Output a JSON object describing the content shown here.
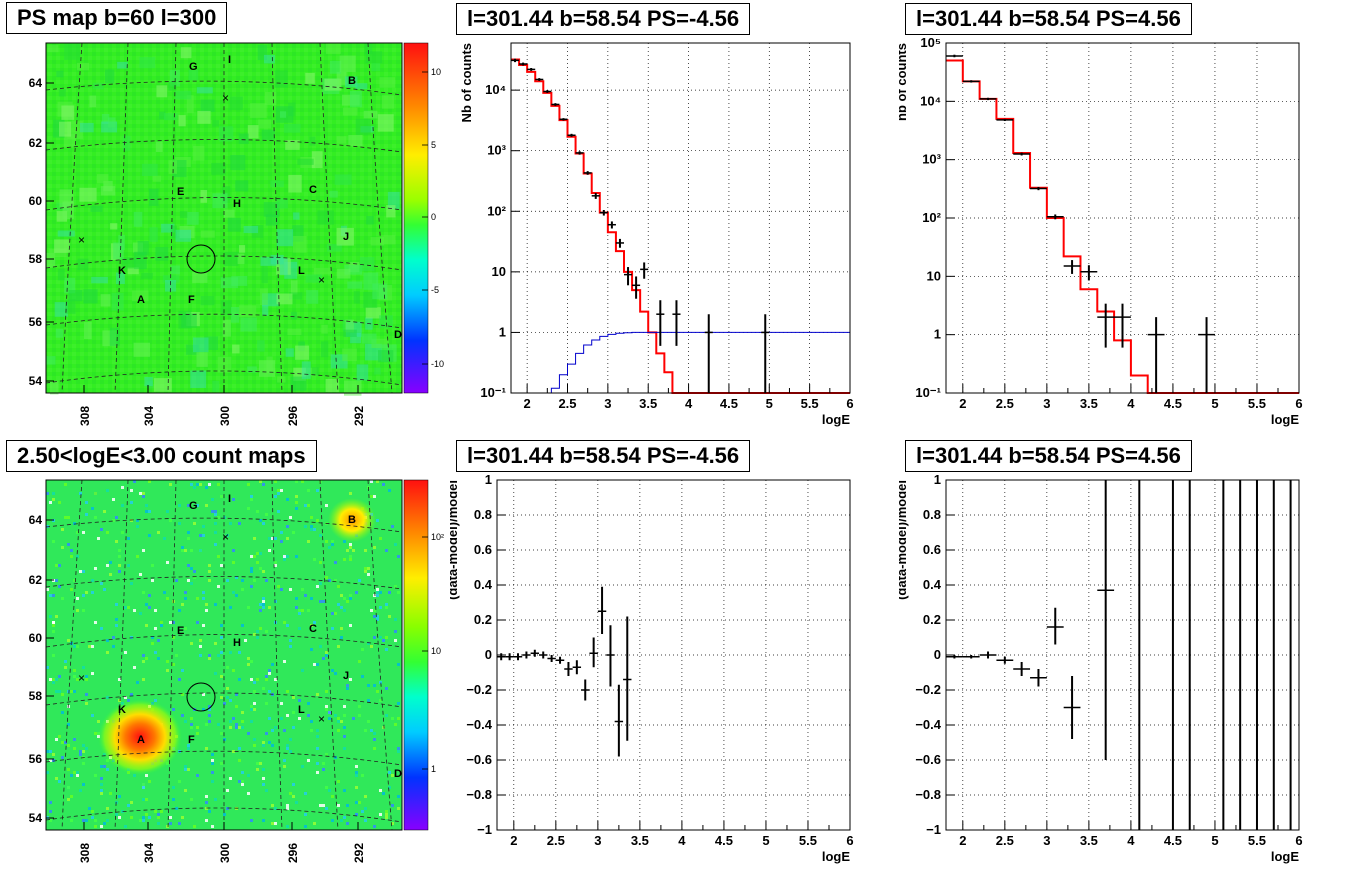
{
  "panels": {
    "map_top": {
      "title": "PS map b=60 l=300"
    },
    "map_bottom": {
      "title": "2.50<logE<3.00 count maps"
    },
    "spec_left": {
      "title": "l=301.44 b=58.54 PS=-4.56"
    },
    "spec_right": {
      "title": "l=301.44 b=58.54 PS=4.56"
    },
    "res_left": {
      "title": "l=301.44 b=58.54 PS=-4.56"
    },
    "res_right": {
      "title": "l=301.44 b=58.54 PS=4.56"
    }
  },
  "maps": {
    "x_ticks": [
      "308",
      "304",
      "300",
      "296",
      "292"
    ],
    "y_ticks": [
      "64",
      "62",
      "60",
      "58",
      "56",
      "54"
    ],
    "source_labels": [
      "G",
      "I",
      "B",
      "E",
      "H",
      "C",
      "J",
      "K",
      "L",
      "A",
      "F",
      "D"
    ],
    "top_colorbar_ticks": [
      "10",
      "5",
      "0",
      "-5",
      "-10"
    ],
    "bottom_colorbar_ticks": [
      "10²",
      "10",
      "1"
    ]
  },
  "chart_data": [
    {
      "type": "line",
      "panel": "spec_left",
      "title": "l=301.44 b=58.54 PS=-4.56",
      "xlabel": "logE",
      "ylabel": "Nb of counts",
      "log_y": true,
      "xlim": [
        1.8,
        6
      ],
      "ylim": [
        0.1,
        60000
      ],
      "x_ticks": [
        "2",
        "2.5",
        "3",
        "3.5",
        "4",
        "4.5",
        "5",
        "5.5",
        "6"
      ],
      "y_ticks": [
        "10⁻¹",
        "1",
        "10",
        "10²",
        "10³",
        "10⁴"
      ],
      "grid": true,
      "series": [
        {
          "kind": "step",
          "color": "#ff0000",
          "edges": [
            1.8,
            1.9,
            2.0,
            2.1,
            2.2,
            2.3,
            2.4,
            2.5,
            2.6,
            2.7,
            2.8,
            2.9,
            3.0,
            3.1,
            3.2,
            3.3,
            3.4,
            3.5,
            3.6,
            3.7,
            3.8,
            3.9,
            4.0,
            6.0
          ],
          "values": [
            32000,
            26000,
            20000,
            14000,
            9000,
            5500,
            3200,
            1700,
            900,
            420,
            200,
            95,
            45,
            22,
            10,
            5,
            2.2,
            1.0,
            0.45,
            0.22,
            0.1,
            0.1,
            0.1
          ]
        },
        {
          "kind": "step",
          "color": "#0000cc",
          "edges": [
            1.8,
            2.3,
            2.4,
            2.5,
            2.6,
            2.7,
            2.8,
            2.9,
            3.0,
            3.1,
            3.2,
            3.3,
            3.4,
            6.0
          ],
          "values": [
            0.1,
            0.12,
            0.2,
            0.3,
            0.45,
            0.62,
            0.75,
            0.86,
            0.93,
            0.97,
            0.99,
            1.0,
            1.0
          ]
        },
        {
          "kind": "points",
          "color": "#000000",
          "points": [
            {
              "x": 1.85,
              "y": 31000,
              "lo": 29000,
              "hi": 33000,
              "xe": 0.05
            },
            {
              "x": 1.95,
              "y": 27000,
              "lo": 25500,
              "hi": 28500,
              "xe": 0.05
            },
            {
              "x": 2.05,
              "y": 22000,
              "lo": 20800,
              "hi": 23200,
              "xe": 0.05
            },
            {
              "x": 2.15,
              "y": 15000,
              "lo": 14200,
              "hi": 15800,
              "xe": 0.05
            },
            {
              "x": 2.25,
              "y": 9500,
              "lo": 9000,
              "hi": 10000,
              "xe": 0.05
            },
            {
              "x": 2.35,
              "y": 5800,
              "lo": 5500,
              "hi": 6100,
              "xe": 0.05
            },
            {
              "x": 2.45,
              "y": 3300,
              "lo": 3150,
              "hi": 3450,
              "xe": 0.05
            },
            {
              "x": 2.55,
              "y": 1800,
              "lo": 1700,
              "hi": 1900,
              "xe": 0.05
            },
            {
              "x": 2.65,
              "y": 920,
              "lo": 860,
              "hi": 980,
              "xe": 0.05
            },
            {
              "x": 2.75,
              "y": 430,
              "lo": 400,
              "hi": 460,
              "xe": 0.05
            },
            {
              "x": 2.85,
              "y": 180,
              "lo": 160,
              "hi": 200,
              "xe": 0.05
            },
            {
              "x": 2.95,
              "y": 95,
              "lo": 85,
              "hi": 105,
              "xe": 0.05
            },
            {
              "x": 3.05,
              "y": 60,
              "lo": 52,
              "hi": 68,
              "xe": 0.05
            },
            {
              "x": 3.15,
              "y": 30,
              "lo": 25,
              "hi": 35,
              "xe": 0.05
            },
            {
              "x": 3.25,
              "y": 9,
              "lo": 6,
              "hi": 12,
              "xe": 0.05
            },
            {
              "x": 3.35,
              "y": 6,
              "lo": 3.6,
              "hi": 8.4,
              "xe": 0.05
            },
            {
              "x": 3.45,
              "y": 11,
              "lo": 7.7,
              "hi": 14.3,
              "xe": 0.05
            },
            {
              "x": 3.65,
              "y": 2,
              "lo": 0.6,
              "hi": 3.4,
              "xe": 0.05
            },
            {
              "x": 3.85,
              "y": 2,
              "lo": 0.6,
              "hi": 3.4,
              "xe": 0.05
            },
            {
              "x": 4.25,
              "y": 1,
              "lo": 0.1,
              "hi": 2,
              "xe": 0.05
            },
            {
              "x": 4.95,
              "y": 1,
              "lo": 0.1,
              "hi": 2,
              "xe": 0.05
            }
          ]
        }
      ]
    },
    {
      "type": "line",
      "panel": "spec_right",
      "title": "l=301.44 b=58.54 PS=4.56",
      "xlabel": "logE",
      "ylabel": "nb of counts",
      "log_y": true,
      "xlim": [
        1.8,
        6
      ],
      "ylim": [
        0.1,
        100000
      ],
      "x_ticks": [
        "2",
        "2.5",
        "3",
        "3.5",
        "4",
        "4.5",
        "5",
        "5.5",
        "6"
      ],
      "y_ticks": [
        "10⁻¹",
        "1",
        "10",
        "10²",
        "10³",
        "10⁴",
        "10⁵"
      ],
      "grid": true,
      "series": [
        {
          "kind": "step",
          "color": "#ff0000",
          "edges": [
            1.8,
            2.0,
            2.2,
            2.4,
            2.6,
            2.8,
            3.0,
            3.2,
            3.4,
            3.6,
            3.8,
            4.0,
            4.2,
            6.0
          ],
          "values": [
            50000,
            22000,
            11000,
            5000,
            1300,
            330,
            100,
            22,
            6,
            2.5,
            0.8,
            0.2,
            0.1
          ]
        },
        {
          "kind": "points",
          "color": "#000000",
          "points": [
            {
              "x": 1.9,
              "y": 60000,
              "lo": 57000,
              "hi": 63000,
              "xe": 0.1
            },
            {
              "x": 2.1,
              "y": 22000,
              "lo": 21000,
              "hi": 23000,
              "xe": 0.1
            },
            {
              "x": 2.3,
              "y": 11000,
              "lo": 10500,
              "hi": 11500,
              "xe": 0.1
            },
            {
              "x": 2.5,
              "y": 4800,
              "lo": 4600,
              "hi": 5000,
              "xe": 0.1
            },
            {
              "x": 2.7,
              "y": 1250,
              "lo": 1180,
              "hi": 1320,
              "xe": 0.1
            },
            {
              "x": 2.9,
              "y": 320,
              "lo": 300,
              "hi": 340,
              "xe": 0.1
            },
            {
              "x": 3.1,
              "y": 105,
              "lo": 95,
              "hi": 115,
              "xe": 0.1
            },
            {
              "x": 3.3,
              "y": 15,
              "lo": 11,
              "hi": 19,
              "xe": 0.1
            },
            {
              "x": 3.5,
              "y": 12,
              "lo": 8.5,
              "hi": 15.5,
              "xe": 0.1
            },
            {
              "x": 3.7,
              "y": 2,
              "lo": 0.6,
              "hi": 3.4,
              "xe": 0.1
            },
            {
              "x": 3.9,
              "y": 2,
              "lo": 0.6,
              "hi": 3.4,
              "xe": 0.1
            },
            {
              "x": 4.3,
              "y": 1,
              "lo": 0.1,
              "hi": 2,
              "xe": 0.1
            },
            {
              "x": 4.9,
              "y": 1,
              "lo": 0.1,
              "hi": 2,
              "xe": 0.1
            }
          ]
        }
      ]
    },
    {
      "type": "scatter",
      "panel": "res_left",
      "title": "l=301.44 b=58.54 PS=-4.56",
      "xlabel": "logE",
      "ylabel": "(data-model)/model",
      "log_y": false,
      "xlim": [
        1.8,
        6
      ],
      "ylim": [
        -1,
        1
      ],
      "x_ticks": [
        "2",
        "2.5",
        "3",
        "3.5",
        "4",
        "4.5",
        "5",
        "5.5",
        "6"
      ],
      "y_ticks": [
        "−1",
        "−0.8",
        "−0.6",
        "−0.4",
        "−0.2",
        "0",
        "0.2",
        "0.4",
        "0.6",
        "0.8",
        "1"
      ],
      "grid": true,
      "series": [
        {
          "kind": "points",
          "color": "#000000",
          "points": [
            {
              "x": 1.85,
              "y": -0.01,
              "lo": -0.03,
              "hi": 0.01,
              "xe": 0.05
            },
            {
              "x": 1.95,
              "y": -0.01,
              "lo": -0.03,
              "hi": 0.01,
              "xe": 0.05
            },
            {
              "x": 2.05,
              "y": -0.01,
              "lo": -0.03,
              "hi": 0.01,
              "xe": 0.05
            },
            {
              "x": 2.15,
              "y": 0.0,
              "lo": -0.02,
              "hi": 0.02,
              "xe": 0.05
            },
            {
              "x": 2.25,
              "y": 0.01,
              "lo": -0.01,
              "hi": 0.03,
              "xe": 0.05
            },
            {
              "x": 2.35,
              "y": 0.0,
              "lo": -0.02,
              "hi": 0.02,
              "xe": 0.05
            },
            {
              "x": 2.45,
              "y": -0.02,
              "lo": -0.04,
              "hi": 0.0,
              "xe": 0.05
            },
            {
              "x": 2.55,
              "y": -0.03,
              "lo": -0.05,
              "hi": -0.01,
              "xe": 0.05
            },
            {
              "x": 2.65,
              "y": -0.08,
              "lo": -0.12,
              "hi": -0.04,
              "xe": 0.05
            },
            {
              "x": 2.75,
              "y": -0.07,
              "lo": -0.11,
              "hi": -0.03,
              "xe": 0.05
            },
            {
              "x": 2.85,
              "y": -0.2,
              "lo": -0.26,
              "hi": -0.14,
              "xe": 0.05
            },
            {
              "x": 2.95,
              "y": 0.01,
              "lo": -0.07,
              "hi": 0.1,
              "xe": 0.05
            },
            {
              "x": 3.05,
              "y": 0.25,
              "lo": 0.12,
              "hi": 0.39,
              "xe": 0.05
            },
            {
              "x": 3.15,
              "y": 0.0,
              "lo": -0.18,
              "hi": 0.17,
              "xe": 0.05
            },
            {
              "x": 3.25,
              "y": -0.38,
              "lo": -0.58,
              "hi": -0.17,
              "xe": 0.05
            },
            {
              "x": 3.35,
              "y": -0.14,
              "lo": -0.49,
              "hi": 0.22,
              "xe": 0.05
            }
          ]
        }
      ]
    },
    {
      "type": "scatter",
      "panel": "res_right",
      "title": "l=301.44 b=58.54 PS=4.56",
      "xlabel": "logE",
      "ylabel": "(data-model)/model",
      "log_y": false,
      "xlim": [
        1.8,
        6
      ],
      "ylim": [
        -1,
        1
      ],
      "x_ticks": [
        "2",
        "2.5",
        "3",
        "3.5",
        "4",
        "4.5",
        "5",
        "5.5",
        "6"
      ],
      "y_ticks": [
        "−1",
        "−0.8",
        "−0.6",
        "−0.4",
        "−0.2",
        "0",
        "0.2",
        "0.4",
        "0.6",
        "0.8",
        "1"
      ],
      "grid": true,
      "series": [
        {
          "kind": "points",
          "color": "#000000",
          "points": [
            {
              "x": 1.9,
              "y": -0.01,
              "lo": -0.02,
              "hi": 0.0,
              "xe": 0.1
            },
            {
              "x": 2.1,
              "y": -0.01,
              "lo": -0.02,
              "hi": 0.0,
              "xe": 0.1
            },
            {
              "x": 2.3,
              "y": 0.0,
              "lo": -0.02,
              "hi": 0.02,
              "xe": 0.1
            },
            {
              "x": 2.5,
              "y": -0.03,
              "lo": -0.05,
              "hi": -0.01,
              "xe": 0.1
            },
            {
              "x": 2.7,
              "y": -0.08,
              "lo": -0.12,
              "hi": -0.04,
              "xe": 0.1
            },
            {
              "x": 2.9,
              "y": -0.13,
              "lo": -0.18,
              "hi": -0.08,
              "xe": 0.1
            },
            {
              "x": 3.1,
              "y": 0.16,
              "lo": 0.06,
              "hi": 0.27,
              "xe": 0.1
            },
            {
              "x": 3.3,
              "y": -0.3,
              "lo": -0.48,
              "hi": -0.12,
              "xe": 0.1
            },
            {
              "x": 3.7,
              "y": 0.37,
              "lo": -0.6,
              "hi": 1.0,
              "xe": 0.1
            },
            {
              "x": 4.1,
              "y": 1.0,
              "lo": -1.0,
              "hi": 1.0,
              "xe": 0
            },
            {
              "x": 4.5,
              "y": 1.0,
              "lo": -1.0,
              "hi": 1.0,
              "xe": 0
            },
            {
              "x": 4.7,
              "y": 1.0,
              "lo": -1.0,
              "hi": 1.0,
              "xe": 0
            },
            {
              "x": 5.1,
              "y": 1.0,
              "lo": -1.0,
              "hi": 1.0,
              "xe": 0
            },
            {
              "x": 5.3,
              "y": 1.0,
              "lo": -1.0,
              "hi": 1.0,
              "xe": 0
            },
            {
              "x": 5.5,
              "y": 1.0,
              "lo": -1.0,
              "hi": 1.0,
              "xe": 0
            },
            {
              "x": 5.7,
              "y": 1.0,
              "lo": -1.0,
              "hi": 1.0,
              "xe": 0
            },
            {
              "x": 5.9,
              "y": 1.0,
              "lo": -1.0,
              "hi": 1.0,
              "xe": 0
            }
          ]
        }
      ]
    }
  ]
}
